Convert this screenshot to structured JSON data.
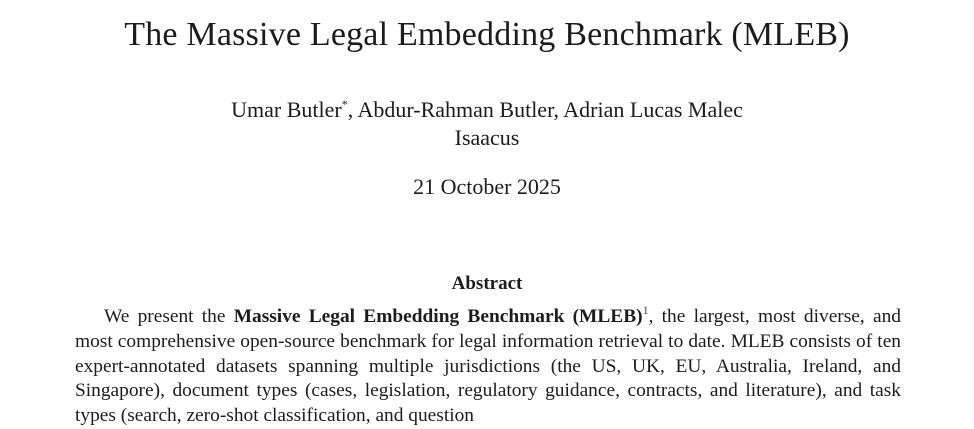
{
  "paper": {
    "title": "The Massive Legal Embedding Benchmark (MLEB)",
    "authors": {
      "first": "Umar Butler",
      "first_marker": "*",
      "rest": ", Abdur-Rahman Butler, Adrian Lucas Malec"
    },
    "affiliation": "Isaacus",
    "date": "21 October 2025",
    "abstract": {
      "heading": "Abstract",
      "intro": "We present the ",
      "benchmark_name": "Massive Legal Embedding Benchmark (MLEB)",
      "footnote_marker": "1",
      "body": ", the largest, most diverse, and most comprehensive open-source benchmark for legal information retrieval to date. MLEB consists of ten expert-annotated datasets spanning multiple jurisdictions (the US, UK, EU, Australia, Ireland, and Singapore), document types (cases, legislation, regulatory guid­ance, contracts, and literature), and task types (search, zero-shot classification, and question"
    }
  }
}
